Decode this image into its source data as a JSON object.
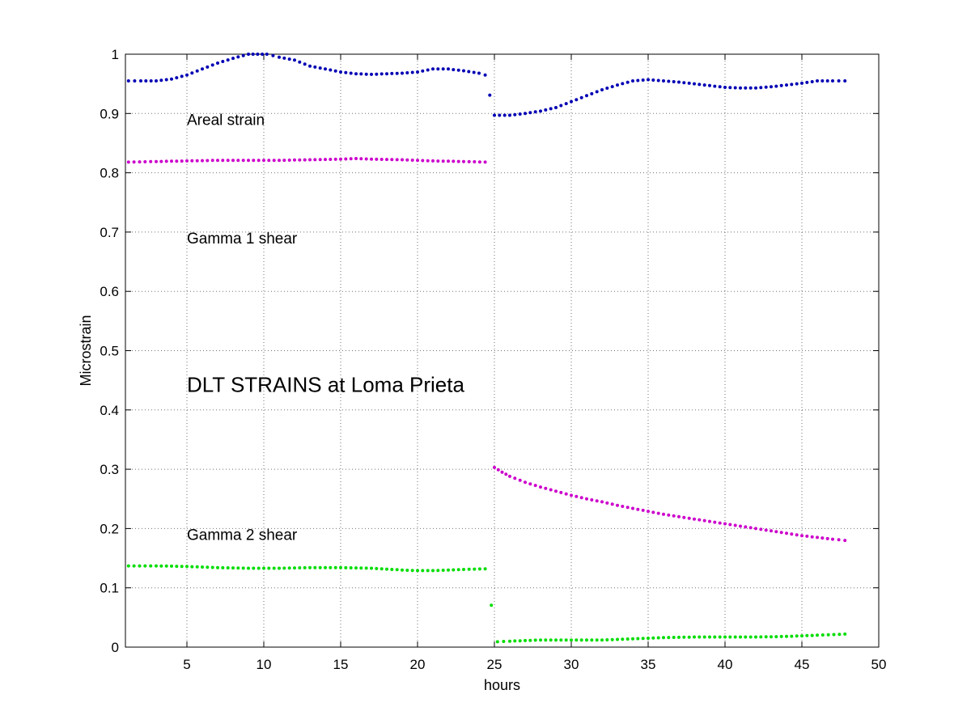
{
  "chart_data": {
    "type": "scatter",
    "title": "",
    "xlabel": "hours",
    "ylabel": "Microstrain",
    "xlim": [
      1,
      50
    ],
    "ylim": [
      0,
      1
    ],
    "xticks": [
      5,
      10,
      15,
      20,
      25,
      30,
      35,
      40,
      45,
      50
    ],
    "yticks": [
      0,
      0.1,
      0.2,
      0.3,
      0.4,
      0.5,
      0.6,
      0.7,
      0.8,
      0.9,
      1
    ],
    "xtick_labels": [
      "5",
      "10",
      "15",
      "20",
      "25",
      "30",
      "35",
      "40",
      "45",
      "50"
    ],
    "ytick_labels": [
      "0",
      "0.1",
      "0.2",
      "0.3",
      "0.4",
      "0.5",
      "0.6",
      "0.7",
      "0.8",
      "0.9",
      "1"
    ],
    "grid": true,
    "annotations": [
      {
        "text": "Areal  strain",
        "x": 5,
        "y": 0.89,
        "size": "normal"
      },
      {
        "text": "Gamma 1  shear",
        "x": 5,
        "y": 0.69,
        "size": "normal"
      },
      {
        "text": "DLT STRAINS at Loma Prieta",
        "x": 5,
        "y": 0.44,
        "size": "large"
      },
      {
        "text": "Gamma 2  shear",
        "x": 5,
        "y": 0.19,
        "size": "normal"
      }
    ],
    "series": [
      {
        "color": "#0000b4",
        "points": [
          [
            1.2,
            0.955
          ],
          [
            2.0,
            0.955
          ],
          [
            3.0,
            0.955
          ],
          [
            4.0,
            0.958
          ],
          [
            5.0,
            0.965
          ],
          [
            6.0,
            0.975
          ],
          [
            7.0,
            0.985
          ],
          [
            8.0,
            0.993
          ],
          [
            9.0,
            1.0
          ],
          [
            10.2,
            1.0
          ],
          [
            11.0,
            0.995
          ],
          [
            12.0,
            0.99
          ],
          [
            13.0,
            0.98
          ],
          [
            14.0,
            0.975
          ],
          [
            15.0,
            0.97
          ],
          [
            16.0,
            0.967
          ],
          [
            17.0,
            0.966
          ],
          [
            18.0,
            0.967
          ],
          [
            19.0,
            0.968
          ],
          [
            20.0,
            0.97
          ],
          [
            21.0,
            0.975
          ],
          [
            22.0,
            0.975
          ],
          [
            23.0,
            0.972
          ],
          [
            24.0,
            0.968
          ],
          [
            24.4,
            0.965
          ],
          [
            25.0,
            0.897
          ],
          [
            26.0,
            0.897
          ],
          [
            27.0,
            0.9
          ],
          [
            28.0,
            0.904
          ],
          [
            29.0,
            0.91
          ],
          [
            30.0,
            0.92
          ],
          [
            31.0,
            0.93
          ],
          [
            32.0,
            0.94
          ],
          [
            33.0,
            0.948
          ],
          [
            34.0,
            0.955
          ],
          [
            35.0,
            0.957
          ],
          [
            36.0,
            0.955
          ],
          [
            37.0,
            0.953
          ],
          [
            38.0,
            0.95
          ],
          [
            39.0,
            0.947
          ],
          [
            40.0,
            0.944
          ],
          [
            41.0,
            0.943
          ],
          [
            42.0,
            0.943
          ],
          [
            43.0,
            0.945
          ],
          [
            44.0,
            0.948
          ],
          [
            45.0,
            0.951
          ],
          [
            46.0,
            0.955
          ],
          [
            47.0,
            0.955
          ],
          [
            47.8,
            0.955
          ]
        ]
      },
      {
        "color": "#cc00cc",
        "points": [
          [
            1.2,
            0.818
          ],
          [
            3.0,
            0.819
          ],
          [
            5.0,
            0.82
          ],
          [
            7.0,
            0.821
          ],
          [
            9.0,
            0.821
          ],
          [
            11.0,
            0.821
          ],
          [
            13.0,
            0.822
          ],
          [
            15.0,
            0.823
          ],
          [
            16.0,
            0.824
          ],
          [
            17.0,
            0.823
          ],
          [
            19.0,
            0.822
          ],
          [
            21.0,
            0.82
          ],
          [
            23.0,
            0.819
          ],
          [
            24.4,
            0.818
          ],
          [
            25.0,
            0.303
          ],
          [
            25.5,
            0.295
          ],
          [
            26.0,
            0.288
          ],
          [
            27.0,
            0.278
          ],
          [
            28.0,
            0.27
          ],
          [
            29.0,
            0.263
          ],
          [
            30.0,
            0.256
          ],
          [
            31.0,
            0.25
          ],
          [
            32.0,
            0.245
          ],
          [
            33.0,
            0.239
          ],
          [
            34.0,
            0.234
          ],
          [
            35.0,
            0.229
          ],
          [
            36.0,
            0.224
          ],
          [
            37.0,
            0.22
          ],
          [
            38.0,
            0.216
          ],
          [
            39.0,
            0.212
          ],
          [
            40.0,
            0.208
          ],
          [
            41.0,
            0.204
          ],
          [
            42.0,
            0.2
          ],
          [
            43.0,
            0.196
          ],
          [
            44.0,
            0.192
          ],
          [
            45.0,
            0.188
          ],
          [
            46.0,
            0.185
          ],
          [
            47.0,
            0.182
          ],
          [
            47.8,
            0.18
          ]
        ]
      },
      {
        "color": "#00dd00",
        "points": [
          [
            1.2,
            0.137
          ],
          [
            3.0,
            0.137
          ],
          [
            5.0,
            0.136
          ],
          [
            7.0,
            0.134
          ],
          [
            9.0,
            0.133
          ],
          [
            11.0,
            0.133
          ],
          [
            13.0,
            0.134
          ],
          [
            15.0,
            0.134
          ],
          [
            17.0,
            0.133
          ],
          [
            19.0,
            0.13
          ],
          [
            20.0,
            0.129
          ],
          [
            21.0,
            0.129
          ],
          [
            22.0,
            0.13
          ],
          [
            23.0,
            0.131
          ],
          [
            24.4,
            0.132
          ],
          [
            25.2,
            0.009
          ],
          [
            26.0,
            0.01
          ],
          [
            28.0,
            0.012
          ],
          [
            30.0,
            0.012
          ],
          [
            32.0,
            0.012
          ],
          [
            34.0,
            0.014
          ],
          [
            36.0,
            0.016
          ],
          [
            38.0,
            0.017
          ],
          [
            40.0,
            0.017
          ],
          [
            42.0,
            0.017
          ],
          [
            44.0,
            0.018
          ],
          [
            46.0,
            0.02
          ],
          [
            47.8,
            0.022
          ]
        ]
      }
    ]
  }
}
